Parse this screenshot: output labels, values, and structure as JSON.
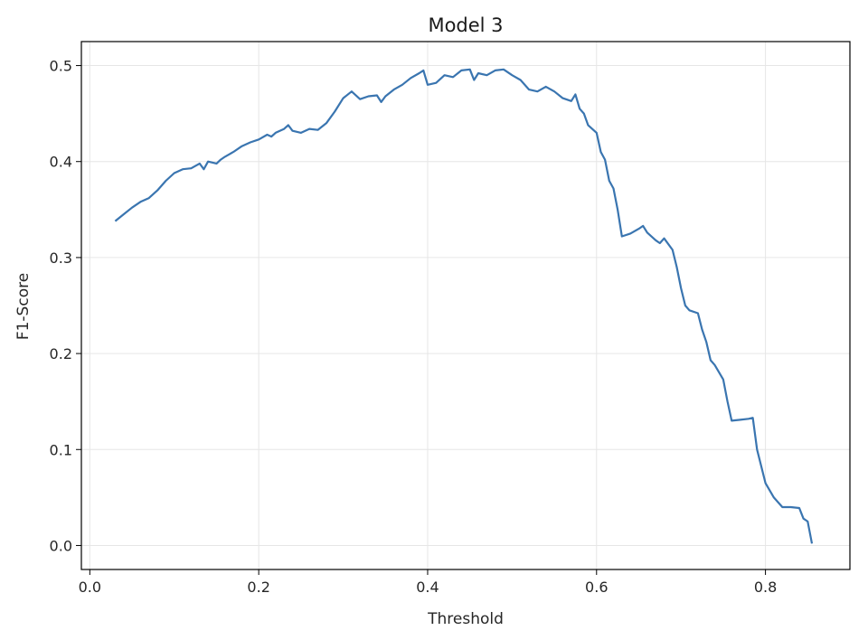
{
  "chart_data": {
    "type": "line",
    "title": "Model 3",
    "xlabel": "Threshold",
    "ylabel": "F1-Score",
    "xlim": [
      -0.01,
      0.9
    ],
    "ylim": [
      -0.025,
      0.525
    ],
    "xticks": [
      0.0,
      0.2,
      0.4,
      0.6,
      0.8
    ],
    "xtick_labels": [
      "0.0",
      "0.2",
      "0.4",
      "0.6",
      "0.8"
    ],
    "yticks": [
      0.0,
      0.1,
      0.2,
      0.3,
      0.4,
      0.5
    ],
    "ytick_labels": [
      "0.0",
      "0.1",
      "0.2",
      "0.3",
      "0.4",
      "0.5"
    ],
    "grid": true,
    "colors": {
      "line": "#3a75b0",
      "grid": "#e6e6e6",
      "axes": "#000000"
    },
    "series": [
      {
        "x": [
          0.03,
          0.04,
          0.05,
          0.06,
          0.07,
          0.08,
          0.09,
          0.1,
          0.11,
          0.12,
          0.13,
          0.135,
          0.14,
          0.15,
          0.155,
          0.16,
          0.17,
          0.18,
          0.19,
          0.2,
          0.21,
          0.215,
          0.22,
          0.23,
          0.235,
          0.24,
          0.25,
          0.26,
          0.27,
          0.28,
          0.29,
          0.3,
          0.31,
          0.32,
          0.33,
          0.34,
          0.345,
          0.35,
          0.36,
          0.37,
          0.38,
          0.39,
          0.395,
          0.4,
          0.41,
          0.42,
          0.43,
          0.44,
          0.45,
          0.455,
          0.46,
          0.47,
          0.48,
          0.49,
          0.5,
          0.51,
          0.52,
          0.53,
          0.54,
          0.55,
          0.56,
          0.57,
          0.575,
          0.58,
          0.585,
          0.59,
          0.6,
          0.605,
          0.61,
          0.615,
          0.62,
          0.625,
          0.63,
          0.64,
          0.65,
          0.655,
          0.66,
          0.67,
          0.675,
          0.68,
          0.69,
          0.695,
          0.7,
          0.705,
          0.71,
          0.72,
          0.725,
          0.73,
          0.735,
          0.74,
          0.75,
          0.755,
          0.76,
          0.77,
          0.78,
          0.785,
          0.79,
          0.8,
          0.81,
          0.82,
          0.83,
          0.84,
          0.845,
          0.85,
          0.855
        ],
        "y": [
          0.338,
          0.345,
          0.352,
          0.358,
          0.362,
          0.37,
          0.38,
          0.388,
          0.392,
          0.393,
          0.398,
          0.392,
          0.4,
          0.398,
          0.402,
          0.405,
          0.41,
          0.416,
          0.42,
          0.423,
          0.428,
          0.426,
          0.43,
          0.434,
          0.438,
          0.432,
          0.43,
          0.434,
          0.433,
          0.44,
          0.452,
          0.466,
          0.473,
          0.465,
          0.468,
          0.469,
          0.462,
          0.468,
          0.475,
          0.48,
          0.487,
          0.492,
          0.495,
          0.48,
          0.482,
          0.49,
          0.488,
          0.495,
          0.496,
          0.485,
          0.492,
          0.49,
          0.495,
          0.496,
          0.49,
          0.485,
          0.475,
          0.473,
          0.478,
          0.473,
          0.466,
          0.463,
          0.47,
          0.455,
          0.45,
          0.438,
          0.43,
          0.41,
          0.402,
          0.38,
          0.372,
          0.35,
          0.322,
          0.325,
          0.33,
          0.333,
          0.326,
          0.318,
          0.315,
          0.32,
          0.308,
          0.29,
          0.268,
          0.25,
          0.245,
          0.242,
          0.225,
          0.212,
          0.193,
          0.188,
          0.173,
          0.15,
          0.13,
          0.131,
          0.132,
          0.133,
          0.1,
          0.065,
          0.05,
          0.04,
          0.04,
          0.039,
          0.028,
          0.025,
          0.002
        ]
      }
    ]
  }
}
